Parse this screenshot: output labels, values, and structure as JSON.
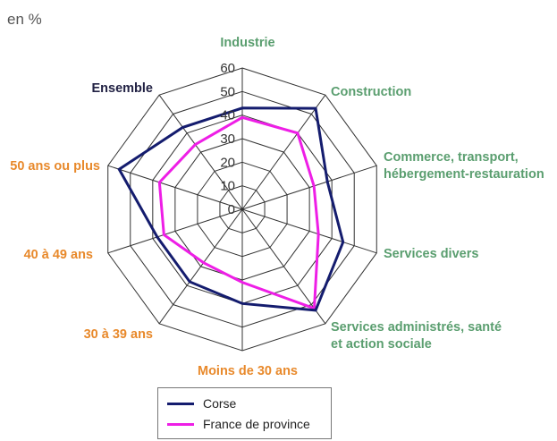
{
  "unit_label": "en %",
  "chart_data": {
    "type": "radar",
    "categories": [
      [
        "Industrie"
      ],
      [
        "Construction"
      ],
      [
        "Commerce, transport,",
        "hébergement-restauration"
      ],
      [
        "Services divers"
      ],
      [
        "Services administrés, santé",
        "et action sociale"
      ],
      [
        "Moins de 30 ans"
      ],
      [
        "30 à 39 ans"
      ],
      [
        "40 à 49 ans"
      ],
      [
        "50 ans ou plus"
      ],
      [
        "Ensemble"
      ]
    ],
    "category_colors": [
      "#5a9e6f",
      "#5a9e6f",
      "#5a9e6f",
      "#5a9e6f",
      "#5a9e6f",
      "#e8892b",
      "#e8892b",
      "#e8892b",
      "#e8892b",
      "#222244"
    ],
    "r_ticks": [
      "0",
      "10",
      "20",
      "30",
      "40",
      "50",
      "60"
    ],
    "r_range": [
      0,
      60
    ],
    "series": [
      {
        "name": "Corse",
        "color": "#141c6e",
        "values": [
          43,
          53,
          38,
          45,
          53,
          40,
          38,
          38,
          55,
          43
        ]
      },
      {
        "name": "France de province",
        "color": "#ee1ee6",
        "values": [
          39,
          40,
          32,
          34,
          52,
          31,
          28,
          35,
          37,
          34
        ]
      }
    ],
    "legend_position": "bottom"
  }
}
